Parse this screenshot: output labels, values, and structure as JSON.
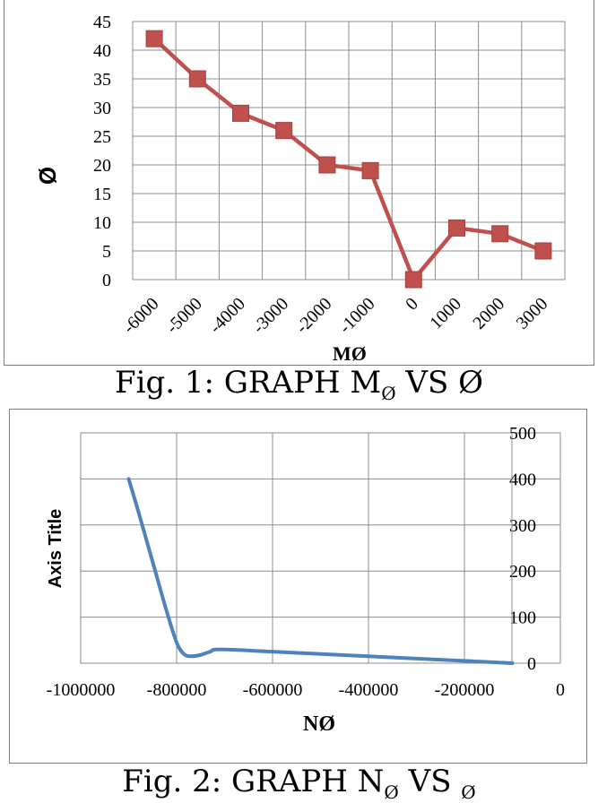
{
  "chart_data": [
    {
      "type": "line",
      "title": "",
      "xlabel": "MØ",
      "ylabel": "Ø",
      "categories": [
        "-6000",
        "-5000",
        "-4000",
        "-3000",
        "-2000",
        "-1000",
        "0",
        "1000",
        "2000",
        "3000"
      ],
      "series": [
        {
          "values": [
            42,
            35,
            29,
            26,
            20,
            19,
            0,
            9,
            8,
            5
          ],
          "color": "#c0504d",
          "marker": "square"
        }
      ],
      "ylim": [
        0,
        45
      ],
      "yticks": [
        "0",
        "5",
        "10",
        "15",
        "20",
        "25",
        "30",
        "35",
        "40",
        "45"
      ],
      "grid": true,
      "legend": "none"
    },
    {
      "type": "line",
      "title": "",
      "xlabel": "NØ",
      "ylabel": "Axis Title",
      "x": [
        -900000,
        -880000,
        -850000,
        -820000,
        -800000,
        -785000,
        -770000,
        -750000,
        -730000,
        -710000,
        -600000,
        -400000,
        -200000,
        -100000
      ],
      "series": [
        {
          "values": [
            400,
            330,
            220,
            110,
            45,
            20,
            15,
            18,
            25,
            30,
            25,
            15,
            5,
            0
          ],
          "color": "#4f81bd",
          "marker": "none",
          "smooth": true
        }
      ],
      "xlim": [
        -1000000,
        0
      ],
      "ylim": [
        0,
        500
      ],
      "xticks": [
        "-1000000",
        "-800000",
        "-600000",
        "-400000",
        "-200000",
        "0"
      ],
      "yticks": [
        "0",
        "100",
        "200",
        "300",
        "400",
        "500"
      ],
      "y_axis_side": "right",
      "grid": true,
      "legend": "none"
    }
  ],
  "captions": {
    "fig1_prefix": "Fig. 1: GRAPH M",
    "fig1_sub": "Ø",
    "fig1_suffix": " VS Ø",
    "fig2_prefix": "Fig. 2: GRAPH N",
    "fig2_sub": "Ø",
    "fig2_mid": " VS ",
    "fig2_sub2": "Ø"
  }
}
